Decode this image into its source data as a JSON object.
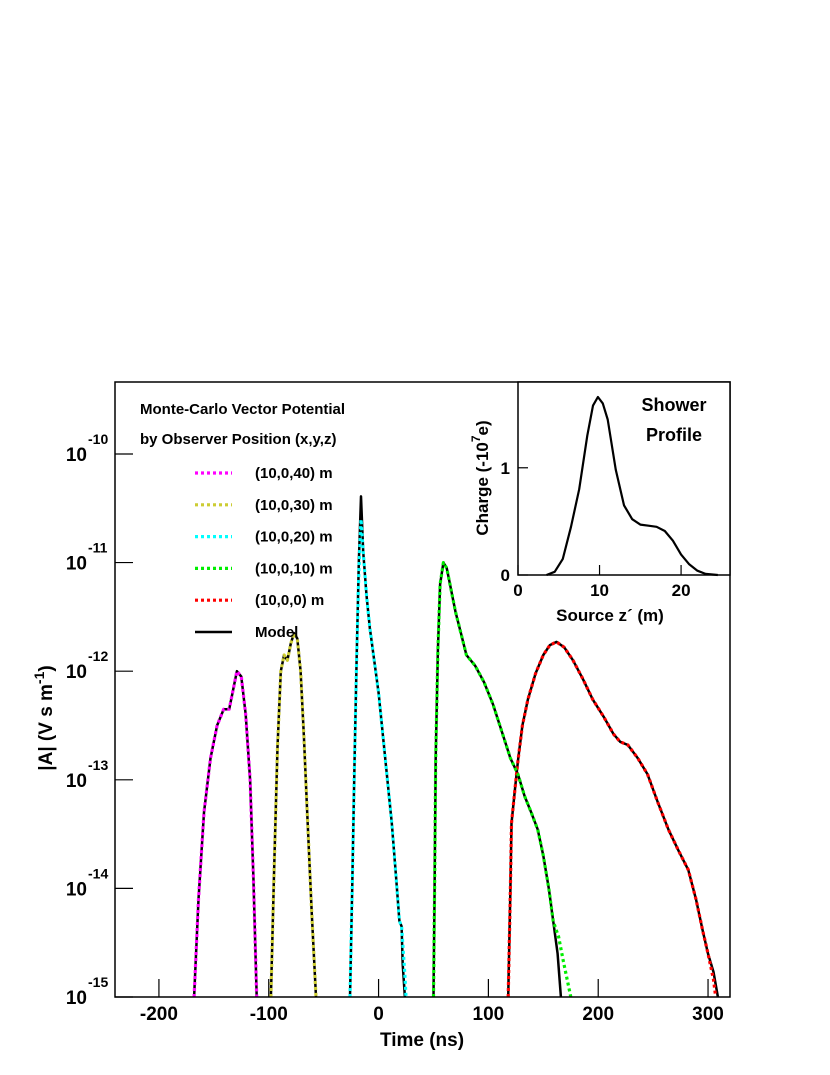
{
  "chart_data": [
    {
      "type": "line",
      "log_y": true,
      "x_label": "Time (ns)",
      "y_label": "|A| (V s m",
      "y_label_superscript": "-1",
      "y_label_end": ")",
      "legend": "upper left",
      "legend_title": [
        "Monte-Carlo Vector Potential",
        "by Observer Position (x,y,z)"
      ],
      "xlim": [
        -240,
        320
      ],
      "xticks": [
        -200,
        -100,
        0,
        100,
        200,
        300
      ],
      "ylim": [
        1e-15,
        4.6e-10
      ],
      "yticks": [
        {
          "value": 1e-15,
          "label": "10",
          "exponent": "-15"
        },
        {
          "value": 1e-14,
          "label": "10",
          "exponent": "-14"
        },
        {
          "value": 1e-13,
          "label": "10",
          "exponent": "-13"
        },
        {
          "value": 1e-12,
          "label": "10",
          "exponent": "-12"
        },
        {
          "value": 1e-11,
          "label": "10",
          "exponent": "-11"
        },
        {
          "value": 1e-10,
          "label": "10",
          "exponent": "-10"
        }
      ],
      "series": [
        {
          "name": "(10,0,40) m",
          "color": "#ff00ff",
          "dashed": true,
          "x": [
            -168,
            -164,
            -159,
            -153,
            -147,
            -141,
            -136,
            -132,
            -129,
            -125,
            -121,
            -117,
            -114,
            -111
          ],
          "values": [
            1e-15,
            7.94e-15,
            5.01e-14,
            1.58e-13,
            3.16e-13,
            4.47e-13,
            4.47e-13,
            7.08e-13,
            1e-12,
            8.91e-13,
            3.98e-13,
            1e-13,
            1.26e-14,
            1e-15
          ]
        },
        {
          "name": "(10,0,30) m",
          "color": "#cccc33",
          "dashed": true,
          "x": [
            -98,
            -95,
            -92,
            -89,
            -86,
            -83,
            -80,
            -77,
            -74,
            -71,
            -68,
            -65,
            -61,
            -57
          ],
          "values": [
            1e-15,
            1.58e-14,
            2e-13,
            1e-12,
            1.41e-12,
            1.26e-12,
            1.78e-12,
            2.24e-12,
            2e-12,
            1e-12,
            2.51e-13,
            5.01e-14,
            6.31e-15,
            1e-15
          ]
        },
        {
          "name": "(10,0,20) m",
          "color": "#00ffff",
          "dashed": true,
          "x": [
            -26,
            -24,
            -22,
            -20,
            -18,
            -16,
            -14,
            -11,
            -8,
            -4,
            0,
            4,
            8,
            12,
            16,
            19,
            21,
            22,
            24,
            25
          ],
          "values": [
            1e-15,
            1e-14,
            1.26e-13,
            1.26e-12,
            7.94e-12,
            2.51e-11,
            1.26e-11,
            5.01e-12,
            2.51e-12,
            1.26e-12,
            6.31e-13,
            2.51e-13,
            1e-13,
            3.98e-14,
            1.26e-14,
            5.01e-15,
            4.47e-15,
            3.16e-15,
            1.58e-15,
            1e-15
          ]
        },
        {
          "name": "(10,0,10) m",
          "color": "#00ee00",
          "dashed": true,
          "x": [
            50,
            51,
            52,
            54,
            56,
            59,
            62,
            66,
            70,
            75,
            80,
            88,
            96,
            104,
            112,
            120,
            127,
            133,
            139,
            145,
            150,
            155,
            159,
            164,
            168,
            175
          ],
          "values": [
            1e-15,
            1e-14,
            1.58e-13,
            1.58e-12,
            6.31e-12,
            1e-11,
            8.91e-12,
            5.62e-12,
            3.55e-12,
            2.24e-12,
            1.41e-12,
            1.12e-12,
            7.94e-13,
            5.01e-13,
            2.82e-13,
            1.58e-13,
            1.12e-13,
            7.08e-14,
            5.01e-14,
            3.47e-14,
            2e-14,
            1e-14,
            5.01e-15,
            3.55e-15,
            2.19e-15,
            1e-15
          ]
        },
        {
          "name": "(10,0,0) m",
          "color": "#ff0000",
          "dashed": true,
          "x": [
            118,
            120,
            121,
            124,
            127,
            131,
            136,
            143,
            150,
            156,
            162,
            169,
            177,
            186,
            195,
            205,
            214,
            220,
            227,
            236,
            245,
            254,
            264,
            273,
            282,
            289,
            295,
            300,
            305,
            307
          ],
          "values": [
            1e-15,
            1e-14,
            3.98e-14,
            7.94e-14,
            1.51e-13,
            3.16e-13,
            5.5e-13,
            9.55e-13,
            1.41e-12,
            1.74e-12,
            1.86e-12,
            1.66e-12,
            1.26e-12,
            8.51e-13,
            5.5e-13,
            3.8e-13,
            2.63e-13,
            2.24e-13,
            2.09e-13,
            1.58e-13,
            1.12e-13,
            6.31e-14,
            3.47e-14,
            2.24e-14,
            1.48e-14,
            7.94e-15,
            4.17e-15,
            2.51e-15,
            1.45e-15,
            1e-15
          ]
        },
        {
          "name": "Model",
          "color": "#000000",
          "dashed": false,
          "x": [
            -168,
            -164,
            -159,
            -153,
            -147,
            -141,
            -136,
            -132,
            -129,
            -125,
            -121,
            -117,
            -114,
            -111,
            null,
            -98,
            -95,
            -92,
            -89,
            -86,
            -83,
            -80,
            -77,
            -74,
            -71,
            -68,
            -65,
            -61,
            -57,
            null,
            -26,
            -24,
            -22,
            -20,
            -18,
            -16,
            -14,
            -11,
            -8,
            -4,
            0,
            4,
            8,
            12,
            16,
            19,
            21,
            22,
            24,
            null,
            50,
            51,
            52,
            54,
            56,
            59,
            62,
            66,
            70,
            75,
            80,
            88,
            96,
            104,
            112,
            120,
            127,
            133,
            139,
            145,
            150,
            155,
            159,
            163,
            166,
            null,
            118,
            120,
            121,
            124,
            127,
            131,
            136,
            143,
            150,
            156,
            162,
            169,
            177,
            186,
            195,
            205,
            214,
            220,
            227,
            236,
            245,
            254,
            264,
            273,
            282,
            289,
            295,
            300,
            305,
            309
          ],
          "values": [
            1e-15,
            7.94e-15,
            5.01e-14,
            1.58e-13,
            3.16e-13,
            4.47e-13,
            4.47e-13,
            7.08e-13,
            1e-12,
            8.91e-13,
            3.98e-13,
            1e-13,
            1.26e-14,
            1e-15,
            null,
            1e-15,
            1.58e-14,
            2e-13,
            1e-12,
            1.41e-12,
            1.26e-12,
            1.78e-12,
            2.24e-12,
            2e-12,
            1e-12,
            2.51e-13,
            5.01e-14,
            6.31e-15,
            1e-15,
            null,
            1e-15,
            1e-14,
            1.26e-13,
            1.26e-12,
            1e-11,
            4.07e-11,
            1.26e-11,
            5.01e-12,
            2.51e-12,
            1.26e-12,
            6.31e-13,
            2.51e-13,
            1e-13,
            3.98e-14,
            1.26e-14,
            5.01e-15,
            4.47e-15,
            2e-15,
            1e-15,
            null,
            1e-15,
            1e-14,
            1.58e-13,
            1.58e-12,
            6.31e-12,
            1e-11,
            8.91e-12,
            5.62e-12,
            3.55e-12,
            2.24e-12,
            1.41e-12,
            1.12e-12,
            7.94e-13,
            5.01e-13,
            2.82e-13,
            1.58e-13,
            1.12e-13,
            7.08e-14,
            5.01e-14,
            3.47e-14,
            2e-14,
            1e-14,
            5.01e-15,
            2.51e-15,
            1e-15,
            null,
            1e-15,
            1e-14,
            3.98e-14,
            7.94e-14,
            1.51e-13,
            3.16e-13,
            5.5e-13,
            9.55e-13,
            1.41e-12,
            1.74e-12,
            1.86e-12,
            1.66e-12,
            1.26e-12,
            8.51e-13,
            5.5e-13,
            3.8e-13,
            2.63e-13,
            2.24e-13,
            2.09e-13,
            1.58e-13,
            1.12e-13,
            6.31e-14,
            3.47e-14,
            2.24e-14,
            1.48e-14,
            7.94e-15,
            4.17e-15,
            2.51e-15,
            1.7e-15,
            1e-15
          ]
        }
      ]
    },
    {
      "type": "line",
      "log_y": false,
      "x_label": "Source z´ (m)",
      "y_label": "Charge (-10",
      "y_label_superscript": "7",
      "y_label_end": "e)",
      "annotations": [
        "Shower",
        "Profile"
      ],
      "xlim": [
        0,
        26
      ],
      "xticks": [
        0,
        10,
        20
      ],
      "ylim": [
        0,
        1.8
      ],
      "yticks": [
        0,
        1
      ],
      "series": [
        {
          "color": "#000000",
          "dashed": false,
          "x": [
            3.5,
            4.5,
            5.5,
            6.5,
            7.5,
            8.5,
            9.2,
            9.8,
            10.4,
            11,
            12,
            13,
            14,
            15,
            16,
            17,
            18,
            19,
            20,
            21,
            22,
            23,
            24.5
          ],
          "values": [
            0,
            0.03,
            0.15,
            0.45,
            0.8,
            1.3,
            1.58,
            1.66,
            1.6,
            1.45,
            0.98,
            0.65,
            0.52,
            0.47,
            0.46,
            0.45,
            0.41,
            0.32,
            0.19,
            0.1,
            0.04,
            0.01,
            0
          ]
        }
      ]
    }
  ]
}
